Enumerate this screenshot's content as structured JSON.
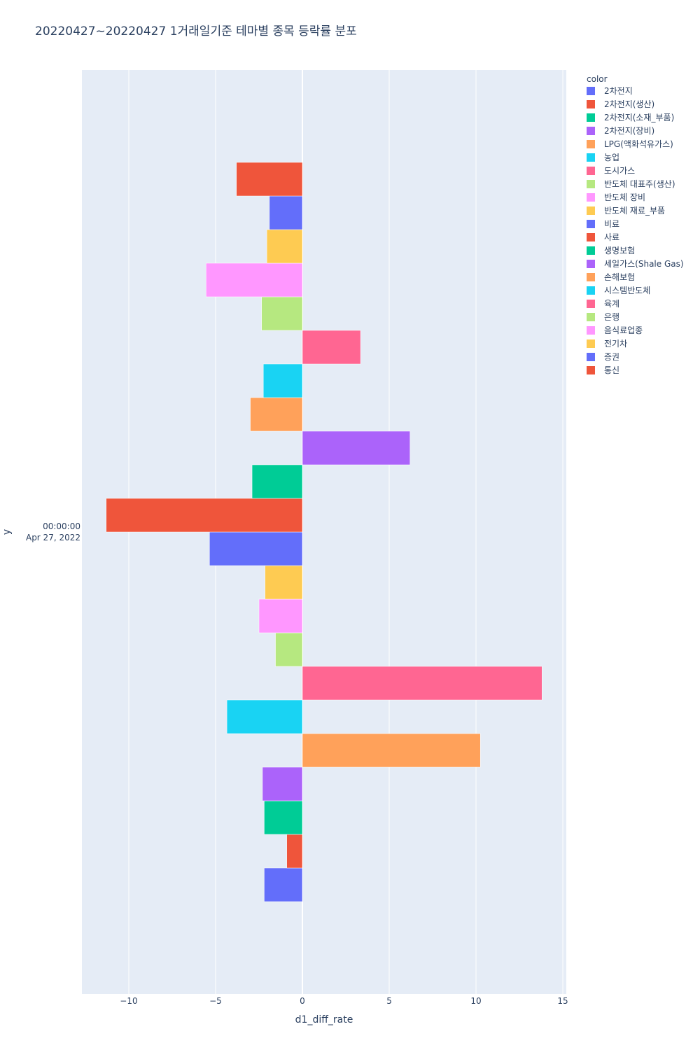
{
  "chart_data": {
    "type": "bar",
    "orientation": "horizontal",
    "title": "20220427~20220427 1거래일기준 테마별 종목 등락률 분포",
    "xlabel": "d1_diff_rate",
    "ylabel": "y",
    "xlim": [
      -12.7,
      15.2
    ],
    "x_ticks": [
      -10,
      -5,
      0,
      5,
      10,
      15
    ],
    "x_tick_labels": [
      "−10",
      "−5",
      "0",
      "5",
      "10",
      "15"
    ],
    "y_tick_label_lines": [
      "00:00:00",
      "Apr 27, 2022"
    ],
    "grid": true,
    "legend_title": "color",
    "legend_position": "top-right",
    "barmode": "group",
    "series": [
      {
        "name": "2차전지",
        "value": -2.2,
        "color": "#636efa"
      },
      {
        "name": "2차전지(생산)",
        "value": -0.9,
        "color": "#EF553B"
      },
      {
        "name": "2차전지(소재_부품)",
        "value": -2.2,
        "color": "#00cc96"
      },
      {
        "name": "2차전지(장비)",
        "value": -2.3,
        "color": "#ab63fa"
      },
      {
        "name": "LPG(액화석유가스)",
        "value": 10.25,
        "color": "#FFA15A"
      },
      {
        "name": "농업",
        "value": -4.35,
        "color": "#19d3f3"
      },
      {
        "name": "도시가스",
        "value": 13.8,
        "color": "#FF6692"
      },
      {
        "name": "반도체 대표주(생산)",
        "value": -1.55,
        "color": "#B6E880"
      },
      {
        "name": "반도체 장비",
        "value": -2.5,
        "color": "#FF97FF"
      },
      {
        "name": "반도체 재료_부품",
        "value": -2.15,
        "color": "#FECB52"
      },
      {
        "name": "비료",
        "value": -5.35,
        "color": "#636efa"
      },
      {
        "name": "사료",
        "value": -11.3,
        "color": "#EF553B"
      },
      {
        "name": "생명보험",
        "value": -2.9,
        "color": "#00cc96"
      },
      {
        "name": "세일가스(Shale Gas)",
        "value": 6.2,
        "color": "#ab63fa"
      },
      {
        "name": "손해보험",
        "value": -3.0,
        "color": "#FFA15A"
      },
      {
        "name": "시스템반도체",
        "value": -2.25,
        "color": "#19d3f3"
      },
      {
        "name": "육계",
        "value": 3.35,
        "color": "#FF6692"
      },
      {
        "name": "은행",
        "value": -2.35,
        "color": "#B6E880"
      },
      {
        "name": "음식료업종",
        "value": -5.55,
        "color": "#FF97FF"
      },
      {
        "name": "전기차",
        "value": -2.05,
        "color": "#FECB52"
      },
      {
        "name": "증권",
        "value": -1.9,
        "color": "#636efa"
      },
      {
        "name": "통신",
        "value": -3.8,
        "color": "#EF553B"
      }
    ]
  }
}
